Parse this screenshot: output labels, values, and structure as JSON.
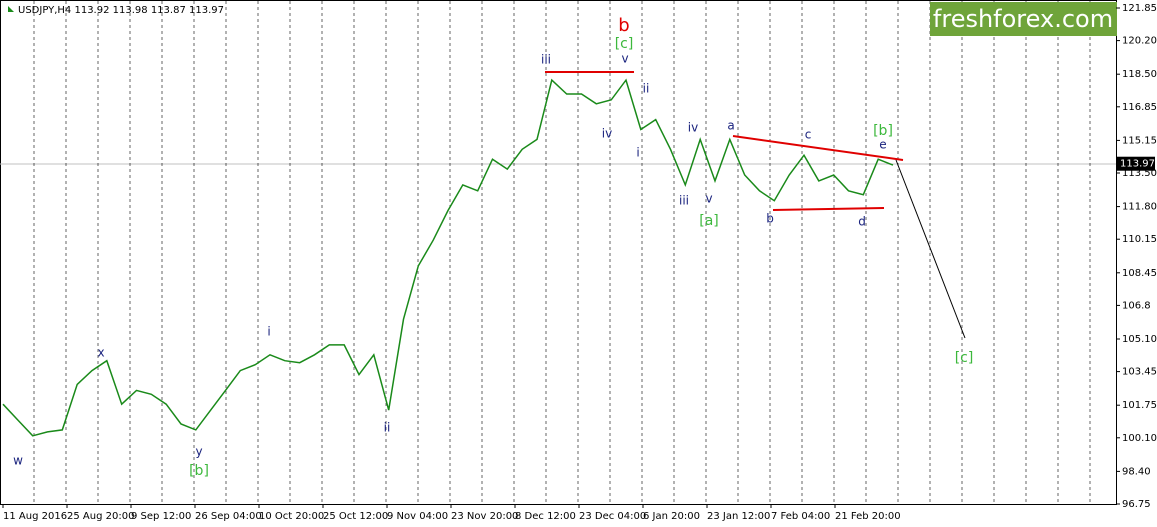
{
  "chart_data": {
    "type": "line",
    "title": "USDJPY,H4  113.92 113.98 113.87 113.97",
    "watermark": "freshforex.com",
    "last_price": 113.97,
    "series": [
      {
        "name": "USDJPY",
        "color": "#1a8a1a",
        "values": [
          101.8,
          101.0,
          100.2,
          100.4,
          100.5,
          102.8,
          103.5,
          104.0,
          101.8,
          102.5,
          102.3,
          101.8,
          100.8,
          100.5,
          101.5,
          102.5,
          103.5,
          103.8,
          104.3,
          104.0,
          103.9,
          104.3,
          104.8,
          104.8,
          103.3,
          104.3,
          101.5,
          106.1,
          108.8,
          110.1,
          111.6,
          112.9,
          112.6,
          114.2,
          113.7,
          114.7,
          115.2,
          118.2,
          117.5,
          117.5,
          117.0,
          117.2,
          118.2,
          115.7,
          116.2,
          114.7,
          112.9,
          115.2,
          113.1,
          115.2,
          113.4,
          112.6,
          112.1,
          113.4,
          114.4,
          113.1,
          113.4,
          112.6,
          112.4,
          114.2,
          113.9
        ]
      }
    ],
    "x_labels": [
      "11 Aug 2016",
      "25 Aug 20:00",
      "9 Sep 12:00",
      "26 Sep 04:00",
      "10 Oct 20:00",
      "25 Oct 12:00",
      "9 Nov 04:00",
      "23 Nov 20:00",
      "8 Dec 12:00",
      "23 Dec 04:00",
      "6 Jan 20:00",
      "23 Jan 12:00",
      "7 Feb 04:00",
      "21 Feb 20:00"
    ],
    "ylim": [
      96.75,
      121.85
    ],
    "yticks": [
      121.85,
      {
        "value": 120.2,
        "label": "120.20"
      },
      {
        "value": 118.5,
        "label": "118.50"
      },
      116.85,
      115.15,
      {
        "value": 113.5,
        "label": "113.50"
      },
      {
        "value": 111.8,
        "label": "111.80"
      },
      110.15,
      108.45,
      106.8,
      {
        "value": 105.1,
        "label": "105.10"
      },
      103.45,
      101.75,
      {
        "value": 100.1,
        "label": "100.10"
      },
      {
        "value": 98.4,
        "label": "98.40"
      },
      96.75
    ],
    "annotations": [
      "w",
      "x",
      "y",
      "[b]",
      "i",
      "ii",
      "iii",
      "iv",
      "v",
      "[c]",
      "b",
      "ii",
      "i",
      "iii",
      "iv",
      "v",
      "[a]",
      "a",
      "b",
      "c",
      "d",
      "[b]",
      "e",
      "[c]"
    ]
  }
}
